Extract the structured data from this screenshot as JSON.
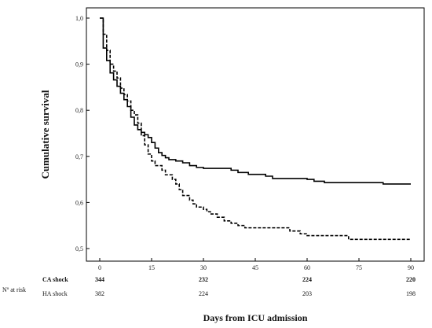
{
  "chart_data": {
    "type": "line",
    "subtype": "kaplan-meier",
    "xlabel": "Days from ICU admission",
    "ylabel": "Cumulative survival",
    "xlim": [
      0,
      90
    ],
    "ylim": [
      0.5,
      1.0
    ],
    "x_ticks": [
      0,
      15,
      30,
      45,
      60,
      75,
      90
    ],
    "y_ticks": [
      0.5,
      0.6,
      0.7,
      0.8,
      0.9,
      1.0
    ],
    "x_tick_labels": [
      "0",
      "15",
      "30",
      "45",
      "60",
      "75",
      "90"
    ],
    "y_tick_labels": [
      "0,5",
      "0,6",
      "0,7",
      "0,8",
      "0,9",
      "1,0"
    ],
    "grid": false,
    "series": [
      {
        "name": "CA shock",
        "line_style": "solid",
        "color": "#000000",
        "points": [
          [
            0,
            1.0
          ],
          [
            1,
            0.935
          ],
          [
            2,
            0.908
          ],
          [
            3,
            0.881
          ],
          [
            4,
            0.866
          ],
          [
            5,
            0.852
          ],
          [
            6,
            0.837
          ],
          [
            7,
            0.823
          ],
          [
            8,
            0.808
          ],
          [
            9,
            0.785
          ],
          [
            10,
            0.768
          ],
          [
            11,
            0.758
          ],
          [
            12,
            0.752
          ],
          [
            13,
            0.747
          ],
          [
            14,
            0.741
          ],
          [
            15,
            0.73
          ],
          [
            16,
            0.718
          ],
          [
            17,
            0.708
          ],
          [
            18,
            0.702
          ],
          [
            19,
            0.697
          ],
          [
            20,
            0.693
          ],
          [
            22,
            0.69
          ],
          [
            24,
            0.686
          ],
          [
            26,
            0.68
          ],
          [
            28,
            0.676
          ],
          [
            30,
            0.674
          ],
          [
            35,
            0.674
          ],
          [
            38,
            0.67
          ],
          [
            40,
            0.665
          ],
          [
            43,
            0.661
          ],
          [
            48,
            0.657
          ],
          [
            50,
            0.652
          ],
          [
            55,
            0.652
          ],
          [
            60,
            0.65
          ],
          [
            62,
            0.646
          ],
          [
            65,
            0.643
          ],
          [
            70,
            0.643
          ],
          [
            80,
            0.643
          ],
          [
            82,
            0.64
          ],
          [
            90,
            0.64
          ]
        ]
      },
      {
        "name": "HA shock",
        "line_style": "dashed",
        "color": "#000000",
        "points": [
          [
            0,
            1.0
          ],
          [
            1,
            0.965
          ],
          [
            2,
            0.93
          ],
          [
            3,
            0.9
          ],
          [
            4,
            0.885
          ],
          [
            5,
            0.87
          ],
          [
            6,
            0.848
          ],
          [
            7,
            0.834
          ],
          [
            8,
            0.82
          ],
          [
            9,
            0.8
          ],
          [
            10,
            0.79
          ],
          [
            11,
            0.772
          ],
          [
            12,
            0.745
          ],
          [
            13,
            0.725
          ],
          [
            14,
            0.705
          ],
          [
            15,
            0.69
          ],
          [
            16,
            0.68
          ],
          [
            18,
            0.67
          ],
          [
            19,
            0.66
          ],
          [
            21,
            0.65
          ],
          [
            22,
            0.64
          ],
          [
            23,
            0.628
          ],
          [
            24,
            0.615
          ],
          [
            26,
            0.605
          ],
          [
            27,
            0.597
          ],
          [
            28,
            0.59
          ],
          [
            30,
            0.585
          ],
          [
            31,
            0.58
          ],
          [
            32,
            0.575
          ],
          [
            34,
            0.568
          ],
          [
            36,
            0.56
          ],
          [
            38,
            0.555
          ],
          [
            40,
            0.55
          ],
          [
            42,
            0.545
          ],
          [
            52,
            0.545
          ],
          [
            55,
            0.538
          ],
          [
            58,
            0.532
          ],
          [
            60,
            0.528
          ],
          [
            70,
            0.528
          ],
          [
            72,
            0.52
          ],
          [
            90,
            0.52
          ]
        ]
      }
    ]
  },
  "risk_table": {
    "label": "Nº at risk",
    "rows": [
      {
        "name": "CA shock",
        "bold": true,
        "values": [
          "344",
          "232",
          "224",
          "220"
        ]
      },
      {
        "name": "HA shock",
        "bold": false,
        "values": [
          "382",
          "224",
          "203",
          "198"
        ]
      }
    ],
    "x_positions": [
      0,
      30,
      60,
      90
    ]
  }
}
